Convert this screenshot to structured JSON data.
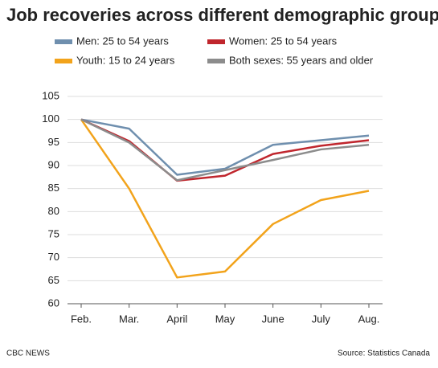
{
  "chart_data": {
    "type": "line",
    "title": "Job recoveries across different demographic groups",
    "categories": [
      "Feb.",
      "Mar.",
      "April",
      "May",
      "June",
      "July",
      "Aug."
    ],
    "series": [
      {
        "name": "Men: 25 to 54 years",
        "color": "#6f8fae",
        "values": [
          100,
          98,
          88,
          89.3,
          94.5,
          95.5,
          96.5
        ]
      },
      {
        "name": "Women: 25 to 54 years",
        "color": "#c0262d",
        "values": [
          100,
          95.3,
          86.7,
          87.8,
          92.5,
          94.3,
          95.5
        ]
      },
      {
        "name": "Youth: 15 to 24 years",
        "color": "#f2a31b",
        "values": [
          100,
          85,
          65.7,
          67,
          77.3,
          82.5,
          84.5
        ]
      },
      {
        "name": "Both sexes: 55 years and older",
        "color": "#8c8c8c",
        "values": [
          100,
          95,
          86.8,
          89,
          91.2,
          93.5,
          94.5
        ]
      }
    ],
    "ylim": [
      60,
      105
    ],
    "yticks": [
      60,
      65,
      70,
      75,
      80,
      85,
      90,
      95,
      100,
      105
    ],
    "grid": true,
    "credit": "CBC NEWS",
    "source": "Source: Statistics Canada"
  }
}
